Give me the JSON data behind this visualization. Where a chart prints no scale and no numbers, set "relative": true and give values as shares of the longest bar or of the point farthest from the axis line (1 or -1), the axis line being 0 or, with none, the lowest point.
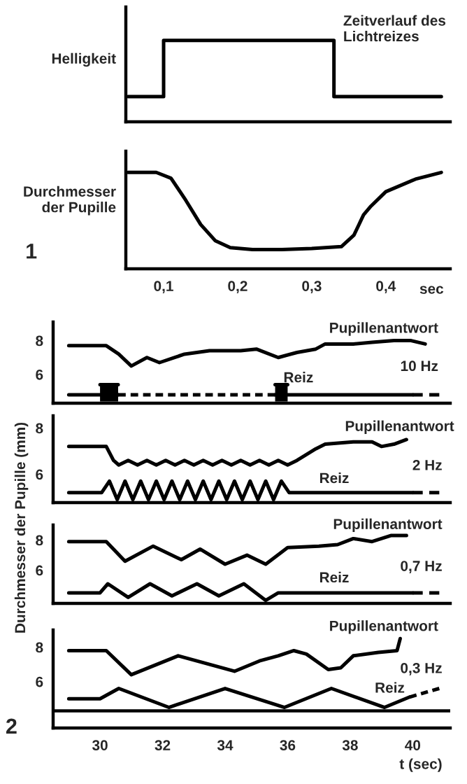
{
  "chart_data": [
    {
      "type": "step",
      "ylabel": "Helligkeit",
      "relative": true,
      "xlim": [
        0.049,
        0.487
      ],
      "tick_labels": false,
      "series": [
        {
          "name": "Zeitverlauf des Lichtreizes",
          "color": "#000000",
          "x": [
            0.052,
            0.1,
            0.33,
            0.475
          ],
          "values": [
            0.31,
            1,
            0.31,
            0.31
          ]
        }
      ]
    },
    {
      "type": "line",
      "ylabel": "Durchmesser der Pupille",
      "xlabel": "sec",
      "relative": true,
      "xlim": [
        0.049,
        0.487
      ],
      "xticks": [
        {
          "value": 0.1,
          "label": "0,1"
        },
        {
          "value": 0.2,
          "label": "0,2"
        },
        {
          "value": 0.3,
          "label": "0,3"
        },
        {
          "value": 0.4,
          "label": "0,4"
        }
      ],
      "tick_labels": "x",
      "annotations": [
        "1"
      ],
      "series": [
        {
          "color": "#000000",
          "x": [
            0.052,
            0.09,
            0.11,
            0.13,
            0.15,
            0.17,
            0.19,
            0.22,
            0.26,
            0.3,
            0.34,
            0.357,
            0.37,
            0.38,
            0.4,
            0.44,
            0.475
          ],
          "values": [
            1,
            1,
            0.94,
            0.71,
            0.46,
            0.29,
            0.22,
            0.2,
            0.2,
            0.21,
            0.23,
            0.35,
            0.56,
            0.65,
            0.8,
            0.93,
            1
          ]
        }
      ]
    },
    {
      "type": "line",
      "xlim": [
        28.5,
        41.2
      ],
      "ylim": [
        4.3,
        9.1
      ],
      "yticks": [
        6,
        8
      ],
      "tick_labels": "y",
      "annotations": [
        "10 Hz"
      ],
      "series": [
        {
          "name": "Pupillenantwort",
          "color": "#000000",
          "x": [
            29.0,
            30.2,
            30.6,
            31.0,
            31.5,
            31.9,
            32.7,
            33.5,
            34.5,
            35.0,
            35.7,
            36.3,
            36.9,
            37.2,
            38.1,
            38.7,
            39.4,
            39.95,
            40.4
          ],
          "values": [
            7.7,
            7.7,
            7.2,
            6.5,
            7.0,
            6.7,
            7.2,
            7.4,
            7.4,
            7.5,
            7.0,
            7.3,
            7.5,
            7.8,
            7.8,
            7.9,
            8.0,
            8.0,
            7.8
          ]
        },
        {
          "name": "Reiz",
          "color": "#000000",
          "x": [
            35.6,
            40.0
          ],
          "values": [
            4.8,
            4.8
          ]
        },
        {
          "color": "#000000",
          "x": [
            29.0,
            30.58
          ],
          "values": [
            4.8,
            4.8
          ]
        },
        {
          "color": "#000000",
          "line_style": "dashed",
          "x": [
            30.58,
            35.6
          ],
          "values": [
            4.8,
            4.8
          ]
        },
        {
          "color": "#000000",
          "line_style": "dashed",
          "x": [
            40.0,
            40.85
          ],
          "values": [
            4.8,
            4.8
          ]
        },
        {
          "color": "#000000",
          "x": [
            30.0,
            30.58
          ],
          "values": [
            5.4,
            5.4
          ],
          "lower": [
            4.4,
            4.4
          ],
          "upper": [
            5.4,
            5.4
          ]
        },
        {
          "color": "#000000",
          "x": [
            35.6,
            36.0
          ],
          "values": [
            5.4,
            5.4
          ],
          "lower": [
            4.4,
            4.4
          ],
          "upper": [
            5.4,
            5.4
          ]
        }
      ]
    },
    {
      "type": "line",
      "xlim": [
        28.5,
        41.2
      ],
      "ylim": [
        4.77,
        8.53
      ],
      "yticks": [
        6,
        8
      ],
      "tick_labels": "y",
      "ylabel": "Durchmesser der Pupille (mm)",
      "annotations": [
        "2 Hz"
      ],
      "series": [
        {
          "name": "Pupillenantwort",
          "color": "#000000",
          "x": [
            29.0,
            30.2,
            30.43,
            30.6,
            30.9,
            31.2,
            31.5,
            31.8,
            32.1,
            32.4,
            32.7,
            33.0,
            33.3,
            33.6,
            33.9,
            34.2,
            34.5,
            34.8,
            35.1,
            35.4,
            35.7,
            36.0,
            36.3,
            36.9,
            37.2,
            38.1,
            38.7,
            39.0,
            39.4,
            39.8
          ],
          "values": [
            7.2,
            7.2,
            6.6,
            6.4,
            6.6,
            6.4,
            6.6,
            6.4,
            6.6,
            6.4,
            6.6,
            6.4,
            6.6,
            6.4,
            6.6,
            6.4,
            6.6,
            6.4,
            6.6,
            6.4,
            6.6,
            6.4,
            6.6,
            7.1,
            7.3,
            7.4,
            7.4,
            7.2,
            7.3,
            7.5
          ]
        },
        {
          "name": "Reiz",
          "color": "#000000",
          "x": [
            29.0,
            30.05,
            30.3,
            30.55,
            30.8,
            31.05,
            31.3,
            31.55,
            31.8,
            32.05,
            32.3,
            32.55,
            32.8,
            33.05,
            33.3,
            33.55,
            33.8,
            34.05,
            34.3,
            34.55,
            34.8,
            35.05,
            35.3,
            35.55,
            35.8,
            36.05,
            40.0
          ],
          "values": [
            5.2,
            5.2,
            5.7,
            4.9,
            5.7,
            4.9,
            5.7,
            4.9,
            5.7,
            4.9,
            5.7,
            4.9,
            5.7,
            4.9,
            5.7,
            4.9,
            5.7,
            4.9,
            5.7,
            4.9,
            5.7,
            4.9,
            5.7,
            4.9,
            5.7,
            5.2,
            5.2
          ]
        },
        {
          "color": "#000000",
          "line_style": "dashed",
          "x": [
            40.0,
            40.85
          ],
          "values": [
            5.2,
            5.2
          ]
        }
      ]
    },
    {
      "type": "line",
      "xlim": [
        28.5,
        41.2
      ],
      "ylim": [
        3.8,
        9.0
      ],
      "yticks": [
        6,
        8
      ],
      "tick_labels": "y",
      "annotations": [
        "0,7 Hz"
      ],
      "series": [
        {
          "name": "Pupillenantwort",
          "color": "#000000",
          "x": [
            29.0,
            30.2,
            30.8,
            31.7,
            32.6,
            33.2,
            34.0,
            34.7,
            35.3,
            36.0,
            37.0,
            37.6,
            38.1,
            38.7,
            39.3,
            39.8
          ],
          "values": [
            7.9,
            7.9,
            6.6,
            7.6,
            6.7,
            7.4,
            6.4,
            7.0,
            6.4,
            7.5,
            7.6,
            7.7,
            8.1,
            7.9,
            8.3,
            8.3
          ]
        },
        {
          "name": "Reiz",
          "color": "#000000",
          "x": [
            29.0,
            30.0,
            30.25,
            30.9,
            31.6,
            32.3,
            33.1,
            33.8,
            34.6,
            35.3,
            35.7,
            40.0
          ],
          "values": [
            4.5,
            4.5,
            5.1,
            4.2,
            5.1,
            4.3,
            5.1,
            4.3,
            5.1,
            4.0,
            4.5,
            4.5
          ]
        },
        {
          "color": "#000000",
          "line_style": "dashed",
          "x": [
            40.0,
            40.85
          ],
          "values": [
            4.5,
            4.5
          ]
        }
      ]
    },
    {
      "type": "line",
      "xlim": [
        28.5,
        41.2
      ],
      "ylim": [
        3.3,
        9.0
      ],
      "yticks": [
        6,
        8
      ],
      "xticks": [
        30,
        32,
        34,
        36,
        38,
        40
      ],
      "xlabel": "t (sec)",
      "annotations": [
        "0,3 Hz",
        "2"
      ],
      "ref_lines": [
        {
          "axis": "y",
          "value": 4.3
        }
      ],
      "series": [
        {
          "name": "Pupillenantwort",
          "color": "#000000",
          "x": [
            29.0,
            30.2,
            31.0,
            32.5,
            34.3,
            35.1,
            35.7,
            36.2,
            36.6,
            37.3,
            37.7,
            38.1,
            38.9,
            39.5,
            39.6
          ],
          "values": [
            7.8,
            7.8,
            6.4,
            7.5,
            6.6,
            7.2,
            7.5,
            7.8,
            7.6,
            6.7,
            6.8,
            7.5,
            7.7,
            7.8,
            8.5
          ]
        },
        {
          "name": "Reiz",
          "color": "#000000",
          "x": [
            29.0,
            30.0,
            30.6,
            32.2,
            34.0,
            35.9,
            37.4,
            39.1,
            39.9
          ],
          "values": [
            5.0,
            5.0,
            5.6,
            4.5,
            5.6,
            4.5,
            5.6,
            4.5,
            5.1
          ]
        },
        {
          "color": "#000000",
          "line_style": "dashed",
          "x": [
            39.9,
            40.85
          ],
          "values": [
            5.1,
            5.6
          ]
        }
      ]
    }
  ]
}
